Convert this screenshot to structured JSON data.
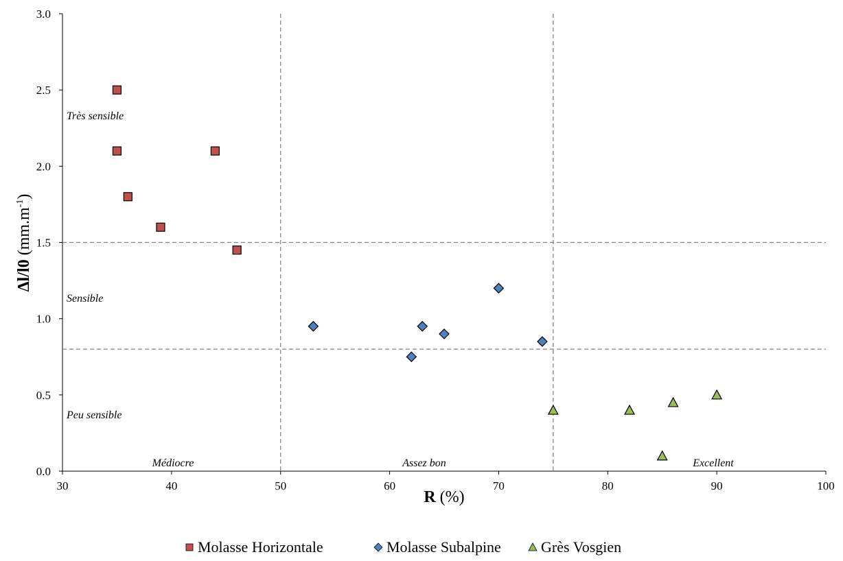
{
  "chart_data": {
    "type": "scatter",
    "xlabel": {
      "bold": "R",
      "rest": " (%)"
    },
    "ylabel": {
      "bold": "Δl/l0",
      "rest": " (mm.m",
      "sup": "-1",
      "close": ")"
    },
    "xlim": [
      30,
      100
    ],
    "ylim": [
      0,
      3.0
    ],
    "xticks": [
      "30",
      "40",
      "50",
      "60",
      "70",
      "80",
      "90",
      "100"
    ],
    "yticks": [
      "0.0",
      "0.5",
      "1.0",
      "1.5",
      "2.0",
      "2.5",
      "3.0"
    ],
    "grid": false,
    "threshold_lines": {
      "vertical": [
        50,
        75
      ],
      "horizontal": [
        0.8,
        1.5
      ]
    },
    "zone_labels": {
      "tres_sensible": "Très sensible",
      "sensible": "Sensible",
      "peu_sensible": "Peu sensible",
      "mediocre": "Médiocre",
      "assez_bon": "Assez bon",
      "excellent": "Excellent"
    },
    "legend_position": "bottom",
    "series": [
      {
        "name": "Molasse Horizontale",
        "marker": "square",
        "color": "#c0504d",
        "points": [
          [
            35,
            2.5
          ],
          [
            35,
            2.1
          ],
          [
            36,
            1.8
          ],
          [
            39,
            1.6
          ],
          [
            44,
            2.1
          ],
          [
            46,
            1.45
          ]
        ]
      },
      {
        "name": "Molasse Subalpine",
        "marker": "diamond",
        "color": "#4f81bd",
        "points": [
          [
            53,
            0.95
          ],
          [
            62,
            0.75
          ],
          [
            63,
            0.95
          ],
          [
            65,
            0.9
          ],
          [
            70,
            1.2
          ],
          [
            74,
            0.85
          ]
        ]
      },
      {
        "name": "Grès Vosgien",
        "marker": "triangle",
        "color": "#9bbb59",
        "points": [
          [
            75,
            0.4
          ],
          [
            82,
            0.4
          ],
          [
            85,
            0.1
          ],
          [
            86,
            0.45
          ],
          [
            90,
            0.5
          ]
        ]
      }
    ]
  }
}
